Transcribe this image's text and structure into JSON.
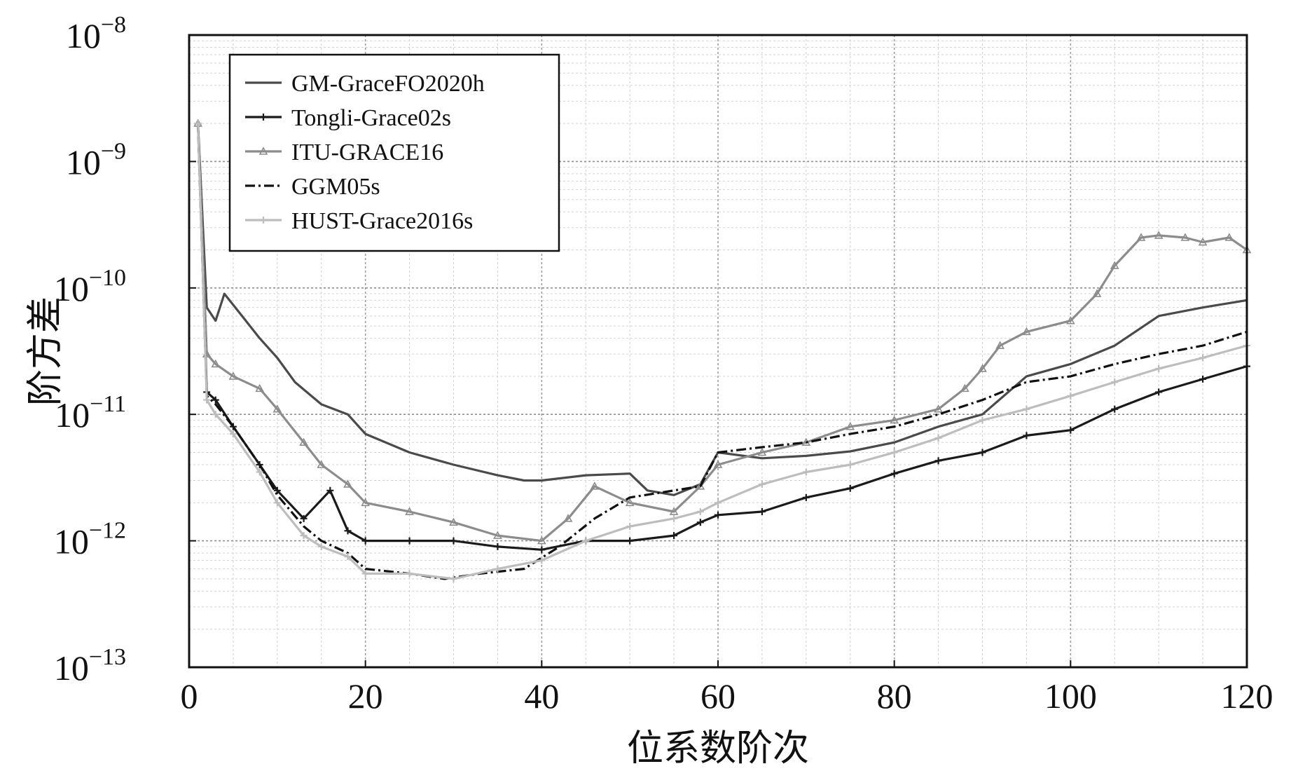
{
  "chart_data": {
    "type": "line",
    "xlabel": "位系数阶次",
    "ylabel": "阶方差",
    "xlim": [
      0,
      120
    ],
    "ylim": [
      1e-13,
      1e-08
    ],
    "yscale": "log",
    "grid": true,
    "legend_position": "top-left",
    "x_ticks": [
      "0",
      "20",
      "40",
      "60",
      "80",
      "100",
      "120"
    ],
    "y_ticks": [
      {
        "base": "10",
        "exp": "−8",
        "value": 1e-08
      },
      {
        "base": "10",
        "exp": "−9",
        "value": 1e-09
      },
      {
        "base": "10",
        "exp": "−10",
        "value": 1e-10
      },
      {
        "base": "10",
        "exp": "−11",
        "value": 1e-11
      },
      {
        "base": "10",
        "exp": "−12",
        "value": 1e-12
      },
      {
        "base": "10",
        "exp": "−13",
        "value": 1e-13
      }
    ],
    "series": [
      {
        "name": "GM-GraceFO2020h",
        "color": "#4a4a4a",
        "dash": "",
        "marker": "none",
        "x": [
          1,
          2,
          3,
          4,
          6,
          8,
          10,
          12,
          15,
          18,
          20,
          25,
          30,
          35,
          38,
          40,
          45,
          50,
          52,
          55,
          58,
          60,
          65,
          70,
          75,
          80,
          85,
          90,
          95,
          100,
          105,
          110,
          115,
          120
        ],
        "y": [
          2e-09,
          7e-11,
          5.5e-11,
          9e-11,
          6e-11,
          4e-11,
          2.8e-11,
          1.8e-11,
          1.2e-11,
          1e-11,
          7e-12,
          5e-12,
          4e-12,
          3.3e-12,
          3e-12,
          3e-12,
          3.3e-12,
          3.4e-12,
          2.5e-12,
          2.3e-12,
          2.8e-12,
          5e-12,
          4.5e-12,
          4.7e-12,
          5.1e-12,
          6e-12,
          8e-12,
          1e-11,
          2e-11,
          2.5e-11,
          3.5e-11,
          6e-11,
          7e-11,
          8e-11
        ]
      },
      {
        "name": "Tongli-Grace02s",
        "color": "#1a1a1a",
        "dash": "",
        "marker": "plus",
        "x": [
          1,
          2,
          3,
          5,
          8,
          10,
          13,
          16,
          18,
          20,
          25,
          30,
          35,
          40,
          45,
          50,
          55,
          58,
          60,
          65,
          70,
          75,
          80,
          85,
          90,
          95,
          100,
          105,
          110,
          115,
          120
        ],
        "y": [
          2e-09,
          1.5e-11,
          1.3e-11,
          8e-12,
          4e-12,
          2.5e-12,
          1.5e-12,
          2.5e-12,
          1.2e-12,
          1e-12,
          1e-12,
          1e-12,
          9e-13,
          8.5e-13,
          1e-12,
          1e-12,
          1.1e-12,
          1.4e-12,
          1.6e-12,
          1.7e-12,
          2.2e-12,
          2.6e-12,
          3.4e-12,
          4.3e-12,
          5e-12,
          6.8e-12,
          7.5e-12,
          1.1e-11,
          1.5e-11,
          1.9e-11,
          2.4e-11
        ]
      },
      {
        "name": "ITU-GRACE16",
        "color": "#8c8c8c",
        "dash": "",
        "marker": "triangle",
        "x": [
          1,
          2,
          3,
          5,
          8,
          10,
          13,
          15,
          18,
          20,
          25,
          30,
          35,
          40,
          43,
          46,
          50,
          55,
          58,
          60,
          65,
          70,
          75,
          80,
          85,
          88,
          90,
          92,
          95,
          100,
          103,
          105,
          108,
          110,
          113,
          115,
          118,
          120
        ],
        "y": [
          2e-09,
          3e-11,
          2.5e-11,
          2e-11,
          1.6e-11,
          1.1e-11,
          6e-12,
          4e-12,
          2.8e-12,
          2e-12,
          1.7e-12,
          1.4e-12,
          1.1e-12,
          1e-12,
          1.5e-12,
          2.7e-12,
          2e-12,
          1.7e-12,
          2.7e-12,
          4e-12,
          5e-12,
          6e-12,
          8e-12,
          9e-12,
          1.1e-11,
          1.6e-11,
          2.3e-11,
          3.5e-11,
          4.5e-11,
          5.5e-11,
          9e-11,
          1.5e-10,
          2.5e-10,
          2.6e-10,
          2.5e-10,
          2.3e-10,
          2.5e-10,
          2e-10
        ]
      },
      {
        "name": "GGM05s",
        "color": "#111111",
        "dash": "14,5,3,5",
        "marker": "none",
        "x": [
          1,
          2,
          3,
          5,
          8,
          10,
          13,
          15,
          18,
          20,
          25,
          29,
          33,
          38,
          42,
          46,
          50,
          55,
          58,
          60,
          65,
          70,
          75,
          80,
          85,
          90,
          95,
          100,
          105,
          110,
          115,
          120
        ],
        "y": [
          2e-09,
          1.4e-11,
          1.2e-11,
          8e-12,
          4e-12,
          2.3e-12,
          1.3e-12,
          1e-12,
          8e-13,
          6e-13,
          5.5e-13,
          5e-13,
          5.5e-13,
          6e-13,
          9e-13,
          1.5e-12,
          2.2e-12,
          2.5e-12,
          2.7e-12,
          5e-12,
          5.5e-12,
          6e-12,
          7e-12,
          8e-12,
          1e-11,
          1.3e-11,
          1.8e-11,
          2e-11,
          2.5e-11,
          3e-11,
          3.5e-11,
          4.5e-11
        ]
      },
      {
        "name": "HUST-Grace2016s",
        "color": "#bdbdbd",
        "dash": "",
        "marker": "plus",
        "x": [
          1,
          2,
          3,
          5,
          8,
          10,
          13,
          15,
          18,
          20,
          25,
          30,
          35,
          40,
          45,
          50,
          55,
          58,
          60,
          65,
          70,
          75,
          80,
          85,
          90,
          95,
          100,
          105,
          110,
          115,
          120
        ],
        "y": [
          2e-09,
          1.3e-11,
          1e-11,
          7e-12,
          3.5e-12,
          2e-12,
          1.1e-12,
          9e-13,
          7.5e-13,
          5.5e-13,
          5.5e-13,
          5e-13,
          6e-13,
          7e-13,
          1e-12,
          1.3e-12,
          1.5e-12,
          1.7e-12,
          2e-12,
          2.8e-12,
          3.5e-12,
          4e-12,
          5e-12,
          6.5e-12,
          9e-12,
          1.1e-11,
          1.4e-11,
          1.8e-11,
          2.3e-11,
          2.8e-11,
          3.5e-11
        ]
      }
    ]
  }
}
